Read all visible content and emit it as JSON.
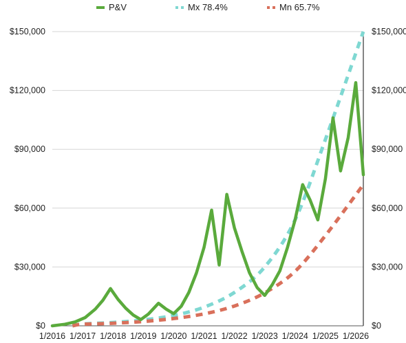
{
  "chart_data": {
    "type": "line",
    "title": "",
    "xlabel": "",
    "ylabel": "",
    "ylim": [
      0,
      150000
    ],
    "y_ticks": [
      "$0",
      "$30,000",
      "$60,000",
      "$90,000",
      "$120,000",
      "$150,000"
    ],
    "y_tick_values": [
      0,
      30000,
      60000,
      90000,
      120000,
      150000
    ],
    "x_ticks": [
      "1/2016",
      "1/2017",
      "1/2018",
      "1/2019",
      "1/2020",
      "1/2021",
      "1/2022",
      "1/2023",
      "1/2024",
      "1/2025",
      "1/2026"
    ],
    "xlim": [
      "2016-01",
      "2026-04"
    ],
    "grid": true,
    "secondary_y_axis": true,
    "legend_position": "top",
    "series": [
      {
        "name": "P&V",
        "style": "solid",
        "color": "#5aaa3c",
        "points": [
          [
            "2016-01",
            0
          ],
          [
            "2016-06",
            800
          ],
          [
            "2016-10",
            2000
          ],
          [
            "2017-02",
            4200
          ],
          [
            "2017-06",
            8500
          ],
          [
            "2017-09",
            13000
          ],
          [
            "2017-12",
            19000
          ],
          [
            "2018-03",
            13500
          ],
          [
            "2018-06",
            9000
          ],
          [
            "2018-09",
            5500
          ],
          [
            "2018-12",
            3200
          ],
          [
            "2019-03",
            6000
          ],
          [
            "2019-07",
            11500
          ],
          [
            "2019-10",
            8500
          ],
          [
            "2020-01",
            6200
          ],
          [
            "2020-04",
            10000
          ],
          [
            "2020-07",
            17000
          ],
          [
            "2020-10",
            27000
          ],
          [
            "2021-01",
            40000
          ],
          [
            "2021-04",
            59000
          ],
          [
            "2021-07",
            31000
          ],
          [
            "2021-10",
            67000
          ],
          [
            "2022-01",
            50000
          ],
          [
            "2022-04",
            38000
          ],
          [
            "2022-07",
            27000
          ],
          [
            "2022-10",
            19500
          ],
          [
            "2023-01",
            15500
          ],
          [
            "2023-04",
            21000
          ],
          [
            "2023-07",
            28000
          ],
          [
            "2023-10",
            40000
          ],
          [
            "2024-01",
            54000
          ],
          [
            "2024-04",
            72000
          ],
          [
            "2024-07",
            64000
          ],
          [
            "2024-10",
            54000
          ],
          [
            "2025-01",
            75000
          ],
          [
            "2025-04",
            106000
          ],
          [
            "2025-07",
            79000
          ],
          [
            "2025-10",
            96000
          ],
          [
            "2026-01",
            124000
          ],
          [
            "2026-04",
            77000
          ]
        ]
      },
      {
        "name": "Mx 78.4%",
        "style": "dashed",
        "color": "#7fd8d2",
        "points": [
          [
            "2016-09",
            0
          ],
          [
            "2017-01",
            900
          ],
          [
            "2018-01",
            1700
          ],
          [
            "2019-01",
            3000
          ],
          [
            "2020-01",
            5300
          ],
          [
            "2021-01",
            9500
          ],
          [
            "2022-01",
            17000
          ],
          [
            "2023-01",
            30000
          ],
          [
            "2024-01",
            54000
          ],
          [
            "2025-01",
            95000
          ],
          [
            "2026-04",
            150000
          ]
        ]
      },
      {
        "name": "Mn 65.7%",
        "style": "dashed",
        "color": "#d9705b",
        "points": [
          [
            "2016-09",
            0
          ],
          [
            "2017-01",
            800
          ],
          [
            "2018-01",
            1300
          ],
          [
            "2019-01",
            2200
          ],
          [
            "2020-01",
            3700
          ],
          [
            "2021-01",
            6100
          ],
          [
            "2022-01",
            10100
          ],
          [
            "2023-01",
            16800
          ],
          [
            "2024-01",
            27800
          ],
          [
            "2025-01",
            46000
          ],
          [
            "2026-04",
            72000
          ]
        ]
      }
    ]
  }
}
